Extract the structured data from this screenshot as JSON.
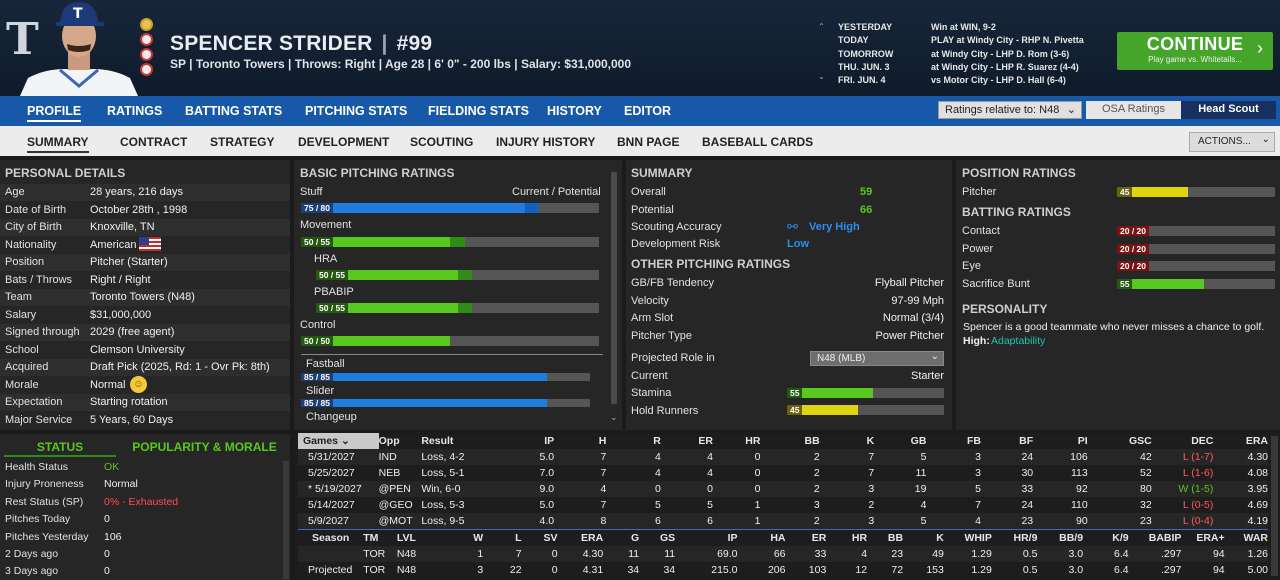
{
  "header": {
    "logo": "T",
    "name": "SPENCER STRIDER",
    "number": "#99",
    "info": "SP | Toronto Towers | Throws: Right | Age 28 | 6' 0\" - 200 lbs | Salary: $31,000,000",
    "schedule": [
      [
        "YESTERDAY",
        "Win at WIN, 9-2"
      ],
      [
        "TODAY",
        "PLAY at Windy City - RHP N. Pivetta"
      ],
      [
        "TOMORROW",
        "at Windy City - LHP D. Rom (3-6)"
      ],
      [
        "THU. JUN. 3",
        "at Windy City - LHP R. Suarez (4-4)"
      ],
      [
        "FRI. JUN. 4",
        "vs Motor City - LHP D. Hall (6-4)"
      ]
    ],
    "continue_label": "CONTINUE",
    "continue_sub": "Play game vs. Whitetails..."
  },
  "nav": {
    "main": [
      "PROFILE",
      "RATINGS",
      "BATTING STATS",
      "PITCHING STATS",
      "FIELDING STATS",
      "HISTORY",
      "EDITOR"
    ],
    "ratings_select": "Ratings relative to: N48",
    "osa": "OSA Ratings",
    "scout": "Head Scout",
    "sub": [
      "SUMMARY",
      "CONTRACT",
      "STRATEGY",
      "DEVELOPMENT",
      "SCOUTING",
      "INJURY HISTORY",
      "BNN PAGE",
      "BASEBALL CARDS"
    ],
    "actions": "ACTIONS..."
  },
  "personal": {
    "title": "PERSONAL DETAILS",
    "rows": [
      [
        "Age",
        "28 years, 216 days"
      ],
      [
        "Date of Birth",
        "October 28th , 1998"
      ],
      [
        "City of Birth",
        "Knoxville, TN"
      ],
      [
        "Nationality",
        "American"
      ],
      [
        "Position",
        "Pitcher (Starter)"
      ],
      [
        "Bats / Throws",
        "Right / Right"
      ],
      [
        "Team",
        "Toronto Towers (N48)"
      ],
      [
        "Salary",
        "$31,000,000"
      ],
      [
        "Signed through",
        "2029 (free agent)"
      ],
      [
        "School",
        "Clemson University"
      ],
      [
        "Acquired",
        "Draft Pick (2025, Rd: 1 - Ovr Pk: 8th)"
      ],
      [
        "Morale",
        "Normal"
      ],
      [
        "Expectation",
        "Starting rotation"
      ],
      [
        "Major Service",
        "5 Years, 60 Days"
      ]
    ]
  },
  "status": {
    "tab1": "STATUS",
    "tab2": "POPULARITY & MORALE",
    "rows": [
      [
        "Health Status",
        "OK"
      ],
      [
        "Injury Proneness",
        "Normal"
      ],
      [
        "Rest Status (SP)",
        "0% - Exhausted"
      ],
      [
        "Pitches Today",
        "0"
      ],
      [
        "Pitches Yesterday",
        "106"
      ],
      [
        "2 Days ago",
        "0"
      ],
      [
        "3 Days ago",
        "0"
      ]
    ]
  },
  "basic": {
    "title": "BASIC PITCHING RATINGS",
    "cp": "Current / Potential",
    "items": [
      {
        "name": "Stuff",
        "text": "75 / 80",
        "cur": 75,
        "pot": 80,
        "color": "blue",
        "indent": false
      },
      {
        "name": "Movement",
        "text": "50 / 55",
        "cur": 50,
        "pot": 55,
        "color": "green",
        "indent": false
      },
      {
        "name": "HRA",
        "text": "50 / 55",
        "cur": 50,
        "pot": 55,
        "color": "green",
        "indent": true
      },
      {
        "name": "PBABIP",
        "text": "50 / 55",
        "cur": 50,
        "pot": 55,
        "color": "green",
        "indent": true
      },
      {
        "name": "Control",
        "text": "50 / 50",
        "cur": 50,
        "pot": 50,
        "color": "green",
        "indent": false
      }
    ],
    "pitches": [
      {
        "name": "Fastball",
        "text": "85 / 85",
        "cur": 85,
        "pot": 85
      },
      {
        "name": "Slider",
        "text": "85 / 85",
        "cur": 85,
        "pot": 85
      },
      {
        "name": "Changeup",
        "text": "",
        "cur": 0,
        "pot": 0
      }
    ]
  },
  "summary": {
    "title": "SUMMARY",
    "overall_label": "Overall",
    "overall": "59",
    "potential_label": "Potential",
    "potential": "66",
    "scout_label": "Scouting Accuracy",
    "scout": "Very High",
    "risk_label": "Development Risk",
    "risk": "Low",
    "other_title": "OTHER PITCHING RATINGS",
    "other": [
      [
        "GB/FB Tendency",
        "Flyball Pitcher"
      ],
      [
        "Velocity",
        "97-99 Mph"
      ],
      [
        "Arm Slot",
        "Normal (3/4)"
      ],
      [
        "Pitcher Type",
        "Power Pitcher"
      ]
    ],
    "role_label": "Projected Role in",
    "role_select": "N48 (MLB)",
    "current_label": "Current",
    "current": "Starter",
    "stamina_label": "Stamina",
    "stamina": 55,
    "hold_label": "Hold Runners",
    "hold": 45
  },
  "position": {
    "title": "POSITION RATINGS",
    "pitcher_label": "Pitcher",
    "pitcher": 45,
    "bat_title": "BATTING RATINGS",
    "bat": [
      [
        "Contact",
        "20 / 20",
        20
      ],
      [
        "Power",
        "20 / 20",
        20
      ],
      [
        "Eye",
        "20 / 20",
        20
      ],
      [
        "Sacrifice Bunt",
        "55",
        55
      ]
    ],
    "pers_title": "PERSONALITY",
    "pers_text": "Spencer is a good teammate who never misses a chance to golf.",
    "high_label": "High:",
    "high": "Adaptability"
  },
  "games": {
    "headers": [
      "Games",
      "Opp",
      "Result",
      "IP",
      "H",
      "R",
      "ER",
      "HR",
      "BB",
      "K",
      "GB",
      "FB",
      "BF",
      "PI",
      "GSC",
      "DEC",
      "ERA"
    ],
    "rows": [
      [
        "5/31/2027",
        "IND",
        "Loss, 4-2",
        "5.0",
        "7",
        "4",
        "4",
        "0",
        "2",
        "7",
        "5",
        "3",
        "24",
        "106",
        "42",
        "L (1-7)",
        "4.30"
      ],
      [
        "5/25/2027",
        "NEB",
        "Loss, 5-1",
        "7.0",
        "7",
        "4",
        "4",
        "0",
        "2",
        "7",
        "11",
        "3",
        "30",
        "113",
        "52",
        "L (1-6)",
        "4.08"
      ],
      [
        "* 5/19/2027",
        "@PEN",
        "Win, 6-0",
        "9.0",
        "4",
        "0",
        "0",
        "0",
        "2",
        "3",
        "19",
        "5",
        "33",
        "92",
        "80",
        "W (1-5)",
        "3.95"
      ],
      [
        "5/14/2027",
        "@GEO",
        "Loss, 5-3",
        "5.0",
        "7",
        "5",
        "5",
        "1",
        "3",
        "2",
        "4",
        "7",
        "24",
        "110",
        "32",
        "L (0-5)",
        "4.69"
      ],
      [
        "5/9/2027",
        "@MOT",
        "Loss, 9-5",
        "4.0",
        "8",
        "6",
        "6",
        "1",
        "2",
        "3",
        "5",
        "4",
        "23",
        "90",
        "23",
        "L (0-4)",
        "4.19"
      ]
    ]
  },
  "season": {
    "headers": [
      "Season",
      "TM",
      "LVL",
      "W",
      "L",
      "SV",
      "ERA",
      "G",
      "GS",
      "IP",
      "HA",
      "ER",
      "HR",
      "BB",
      "K",
      "WHIP",
      "HR/9",
      "BB/9",
      "K/9",
      "BABIP",
      "ERA+",
      "WAR"
    ],
    "rows": [
      [
        "",
        "TOR",
        "N48",
        "1",
        "7",
        "0",
        "4.30",
        "11",
        "11",
        "69.0",
        "66",
        "33",
        "4",
        "23",
        "49",
        "1.29",
        "0.5",
        "3.0",
        "6.4",
        ".297",
        "94",
        "1.26"
      ],
      [
        "Projected",
        "TOR",
        "N48",
        "3",
        "22",
        "0",
        "4.31",
        "34",
        "34",
        "215.0",
        "206",
        "103",
        "12",
        "72",
        "153",
        "1.29",
        "0.5",
        "3.0",
        "6.4",
        ".297",
        "94",
        "5.00"
      ]
    ]
  }
}
